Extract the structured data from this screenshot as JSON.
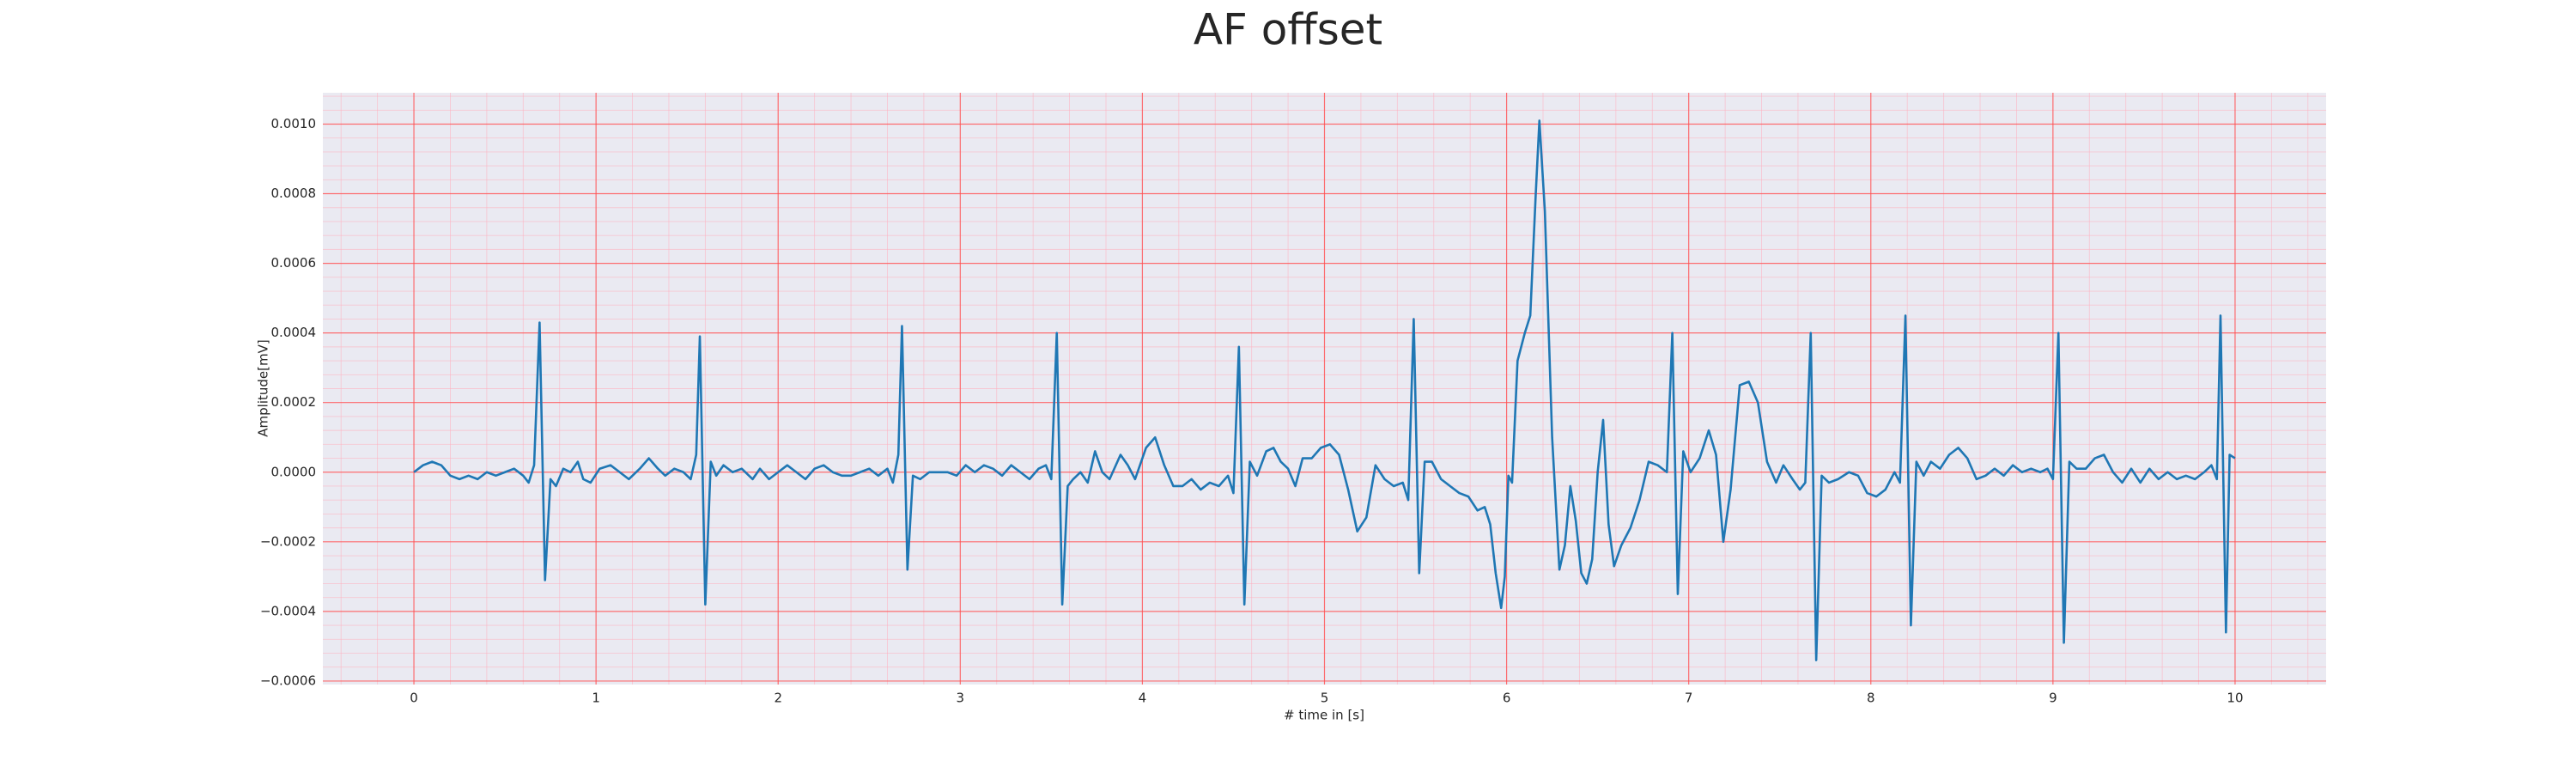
{
  "chart_data": {
    "type": "line",
    "title": "AF offset",
    "xlabel": "# time in [s]",
    "ylabel": "Amplitude[mV]",
    "xlim": [
      -0.5,
      10.5
    ],
    "ylim": [
      -0.00061,
      0.00109
    ],
    "xticks": [
      0,
      1,
      2,
      3,
      4,
      5,
      6,
      7,
      8,
      9,
      10
    ],
    "yticks": [
      {
        "value": -0.0006,
        "label": "−0.0006"
      },
      {
        "value": -0.0004,
        "label": "−0.0004"
      },
      {
        "value": -0.0002,
        "label": "−0.0002"
      },
      {
        "value": 0,
        "label": "0.0000"
      },
      {
        "value": 0.0002,
        "label": "0.0002"
      },
      {
        "value": 0.0004,
        "label": "0.0004"
      },
      {
        "value": 0.0006,
        "label": "0.0006"
      },
      {
        "value": 0.0008,
        "label": "0.0008"
      },
      {
        "value": 0.001,
        "label": "0.0010"
      }
    ],
    "grid": true,
    "x": [
      0.0,
      0.05,
      0.1,
      0.15,
      0.2,
      0.25,
      0.3,
      0.35,
      0.4,
      0.45,
      0.5,
      0.55,
      0.6,
      0.63,
      0.66,
      0.69,
      0.72,
      0.75,
      0.78,
      0.82,
      0.86,
      0.9,
      0.93,
      0.97,
      1.02,
      1.08,
      1.13,
      1.18,
      1.24,
      1.29,
      1.34,
      1.38,
      1.43,
      1.48,
      1.52,
      1.55,
      1.57,
      1.6,
      1.63,
      1.66,
      1.7,
      1.75,
      1.8,
      1.86,
      1.9,
      1.95,
      2.0,
      2.05,
      2.1,
      2.15,
      2.2,
      2.25,
      2.3,
      2.35,
      2.4,
      2.45,
      2.5,
      2.55,
      2.6,
      2.63,
      2.66,
      2.68,
      2.71,
      2.74,
      2.78,
      2.83,
      2.88,
      2.93,
      2.98,
      3.03,
      3.08,
      3.13,
      3.18,
      3.23,
      3.28,
      3.33,
      3.38,
      3.43,
      3.47,
      3.5,
      3.53,
      3.56,
      3.59,
      3.62,
      3.66,
      3.7,
      3.74,
      3.78,
      3.82,
      3.88,
      3.92,
      3.96,
      4.02,
      4.07,
      4.12,
      4.17,
      4.22,
      4.27,
      4.32,
      4.37,
      4.42,
      4.47,
      4.5,
      4.53,
      4.56,
      4.59,
      4.63,
      4.68,
      4.72,
      4.76,
      4.8,
      4.84,
      4.88,
      4.93,
      4.98,
      5.03,
      5.08,
      5.13,
      5.18,
      5.23,
      5.28,
      5.33,
      5.38,
      5.43,
      5.46,
      5.49,
      5.52,
      5.55,
      5.59,
      5.64,
      5.69,
      5.74,
      5.79,
      5.84,
      5.88,
      5.91,
      5.94,
      5.97,
      5.99,
      6.01,
      6.03,
      6.06,
      6.1,
      6.13,
      6.16,
      6.18,
      6.21,
      6.25,
      6.29,
      6.32,
      6.35,
      6.38,
      6.41,
      6.44,
      6.47,
      6.5,
      6.53,
      6.56,
      6.59,
      6.63,
      6.68,
      6.73,
      6.78,
      6.83,
      6.88,
      6.91,
      6.94,
      6.97,
      7.01,
      7.06,
      7.11,
      7.15,
      7.19,
      7.23,
      7.28,
      7.33,
      7.38,
      7.43,
      7.48,
      7.52,
      7.57,
      7.61,
      7.64,
      7.67,
      7.7,
      7.73,
      7.77,
      7.82,
      7.88,
      7.93,
      7.98,
      8.03,
      8.08,
      8.13,
      8.16,
      8.19,
      8.22,
      8.25,
      8.29,
      8.33,
      8.38,
      8.43,
      8.48,
      8.53,
      8.58,
      8.63,
      8.68,
      8.73,
      8.78,
      8.83,
      8.88,
      8.93,
      8.97,
      9.0,
      9.03,
      9.06,
      9.09,
      9.13,
      9.18,
      9.23,
      9.28,
      9.33,
      9.38,
      9.43,
      9.48,
      9.53,
      9.58,
      9.63,
      9.68,
      9.73,
      9.78,
      9.83,
      9.87,
      9.9,
      9.92,
      9.95,
      9.97,
      10.0
    ],
    "series": [
      {
        "color": "#1f77b4",
        "values": [
          0.0,
          2e-05,
          3e-05,
          2e-05,
          -1e-05,
          -2e-05,
          -1e-05,
          -2e-05,
          0.0,
          -1e-05,
          0.0,
          1e-05,
          -1e-05,
          -3e-05,
          2e-05,
          0.00043,
          -0.00031,
          -2e-05,
          -4e-05,
          1e-05,
          0.0,
          3e-05,
          -2e-05,
          -3e-05,
          1e-05,
          2e-05,
          0.0,
          -2e-05,
          1e-05,
          4e-05,
          1e-05,
          -1e-05,
          1e-05,
          0.0,
          -2e-05,
          5e-05,
          0.00039,
          -0.00038,
          3e-05,
          -1e-05,
          2e-05,
          0.0,
          1e-05,
          -2e-05,
          1e-05,
          -2e-05,
          0.0,
          2e-05,
          0.0,
          -2e-05,
          1e-05,
          2e-05,
          0.0,
          -1e-05,
          -1e-05,
          0.0,
          1e-05,
          -1e-05,
          1e-05,
          -3e-05,
          5e-05,
          0.00042,
          -0.00028,
          -1e-05,
          -2e-05,
          0.0,
          0.0,
          0.0,
          -1e-05,
          2e-05,
          0.0,
          2e-05,
          1e-05,
          -1e-05,
          2e-05,
          0.0,
          -2e-05,
          1e-05,
          2e-05,
          -2e-05,
          0.0004,
          -0.00038,
          -4e-05,
          -2e-05,
          0.0,
          -3e-05,
          6e-05,
          0.0,
          -2e-05,
          5e-05,
          2e-05,
          -2e-05,
          7e-05,
          0.0001,
          2e-05,
          -4e-05,
          -4e-05,
          -2e-05,
          -5e-05,
          -3e-05,
          -4e-05,
          -1e-05,
          -6e-05,
          0.00036,
          -0.00038,
          3e-05,
          -1e-05,
          6e-05,
          7e-05,
          3e-05,
          1e-05,
          -4e-05,
          4e-05,
          4e-05,
          7e-05,
          8e-05,
          5e-05,
          -5e-05,
          -0.00017,
          -0.00013,
          2e-05,
          -2e-05,
          -4e-05,
          -3e-05,
          -8e-05,
          0.00044,
          -0.00029,
          3e-05,
          3e-05,
          -2e-05,
          -4e-05,
          -6e-05,
          -7e-05,
          -0.00011,
          -0.0001,
          -0.00015,
          -0.00029,
          -0.00039,
          -0.0003,
          -1e-05,
          -3e-05,
          0.00032,
          0.0004,
          0.00045,
          0.0008,
          0.00101,
          0.00075,
          0.0001,
          -0.00028,
          -0.00021,
          -4e-05,
          -0.00014,
          -0.00029,
          -0.00032,
          -0.00025,
          0.0,
          0.00015,
          -0.00015,
          -0.00027,
          -0.00021,
          -0.00016,
          -8e-05,
          3e-05,
          2e-05,
          0.0,
          0.0004,
          -0.00035,
          6e-05,
          0.0,
          4e-05,
          0.00012,
          5e-05,
          -0.0002,
          -5e-05,
          0.00025,
          0.00026,
          0.0002,
          3e-05,
          -3e-05,
          2e-05,
          -2e-05,
          -5e-05,
          -3e-05,
          0.0004,
          -0.00054,
          -1e-05,
          -3e-05,
          -2e-05,
          0.0,
          -1e-05,
          -6e-05,
          -7e-05,
          -5e-05,
          0.0,
          -3e-05,
          0.00045,
          -0.00044,
          3e-05,
          -1e-05,
          3e-05,
          1e-05,
          5e-05,
          7e-05,
          4e-05,
          -2e-05,
          -1e-05,
          1e-05,
          -1e-05,
          2e-05,
          0.0,
          1e-05,
          0.0,
          1e-05,
          -2e-05,
          0.0004,
          -0.00049,
          3e-05,
          1e-05,
          1e-05,
          4e-05,
          5e-05,
          0.0,
          -3e-05,
          1e-05,
          -3e-05,
          1e-05,
          -2e-05,
          0.0,
          -2e-05,
          -1e-05,
          -2e-05,
          0.0,
          2e-05,
          -2e-05,
          0.00045,
          -0.00046,
          5e-05,
          4e-05
        ]
      }
    ]
  }
}
